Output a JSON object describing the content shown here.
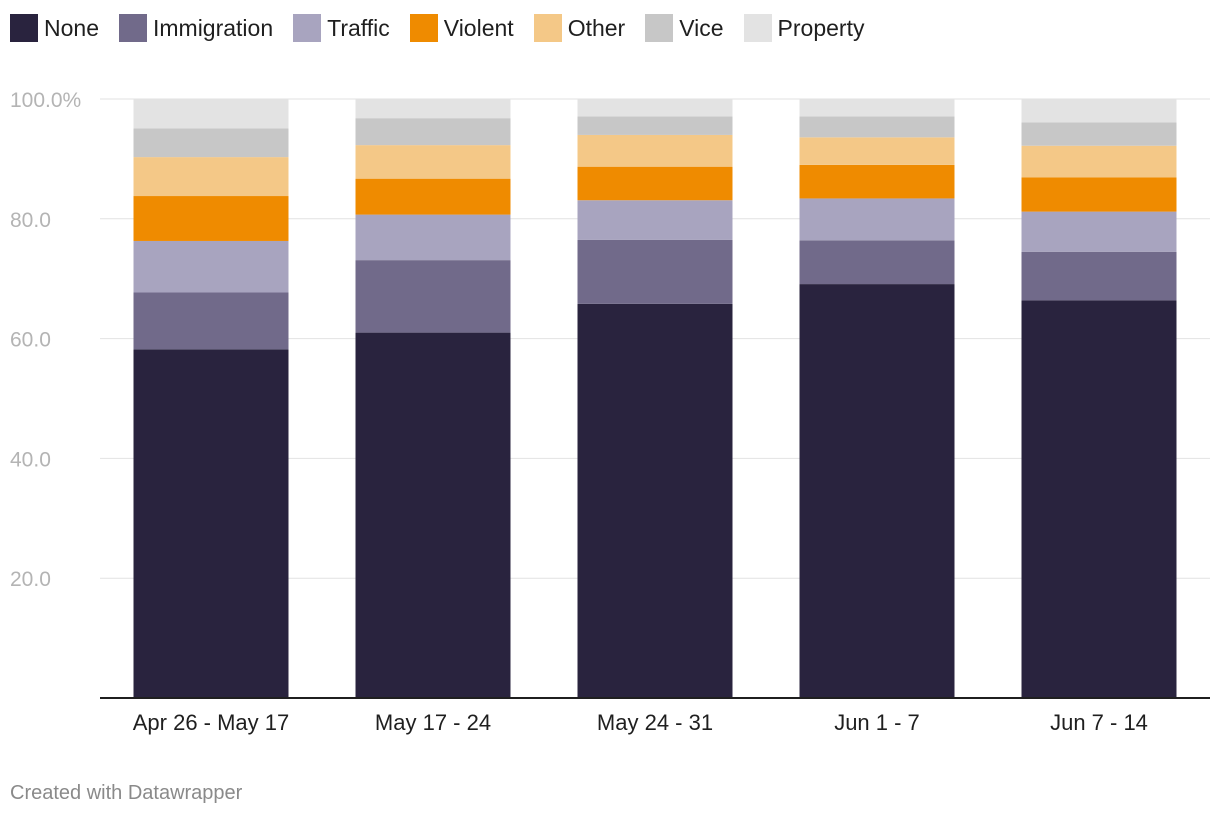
{
  "legend": [
    {
      "label": "None",
      "color": "#29233e"
    },
    {
      "label": "Immigration",
      "color": "#716a8a"
    },
    {
      "label": "Traffic",
      "color": "#a8a4bf"
    },
    {
      "label": "Violent",
      "color": "#ef8b00"
    },
    {
      "label": "Other",
      "color": "#f4c887"
    },
    {
      "label": "Vice",
      "color": "#c7c7c7"
    },
    {
      "label": "Property",
      "color": "#e3e3e3"
    }
  ],
  "chart_data": {
    "type": "bar",
    "stacked": true,
    "categories": [
      "Apr 26 - May 17",
      "May 17 - 24",
      "May 24 - 31",
      "Jun 1 - 7",
      "Jun 7 - 14"
    ],
    "series": [
      {
        "name": "None",
        "color": "#29233e",
        "values": [
          58.2,
          61.0,
          65.8,
          69.1,
          66.4
        ]
      },
      {
        "name": "Immigration",
        "color": "#716a8a",
        "values": [
          9.5,
          12.1,
          10.7,
          7.3,
          8.1
        ]
      },
      {
        "name": "Traffic",
        "color": "#a8a4bf",
        "values": [
          8.6,
          7.6,
          6.6,
          7.0,
          6.7
        ]
      },
      {
        "name": "Violent",
        "color": "#ef8b00",
        "values": [
          7.5,
          6.0,
          5.6,
          5.6,
          5.7
        ]
      },
      {
        "name": "Other",
        "color": "#f4c887",
        "values": [
          6.5,
          5.6,
          5.3,
          4.6,
          5.3
        ]
      },
      {
        "name": "Vice",
        "color": "#c7c7c7",
        "values": [
          4.8,
          4.5,
          3.1,
          3.5,
          3.9
        ]
      },
      {
        "name": "Property",
        "color": "#e3e3e3",
        "values": [
          4.9,
          3.2,
          2.9,
          2.9,
          3.9
        ]
      }
    ],
    "ylim": [
      0,
      100
    ],
    "yticks": [
      {
        "value": 20,
        "label": "20.0"
      },
      {
        "value": 40,
        "label": "40.0"
      },
      {
        "value": 60,
        "label": "60.0"
      },
      {
        "value": 80,
        "label": "80.0"
      },
      {
        "value": 100,
        "label": "100.0%"
      }
    ],
    "grid": true,
    "legend_position": "top-left"
  },
  "footer": {
    "credit": "Created with Datawrapper"
  }
}
